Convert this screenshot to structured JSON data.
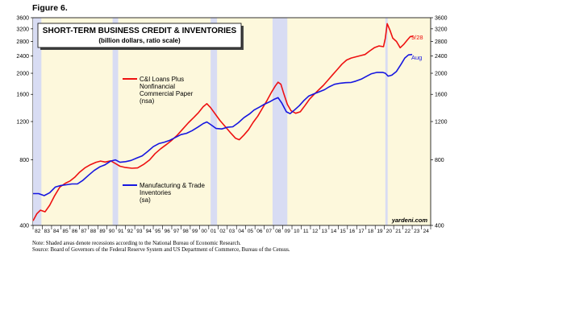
{
  "figure_label": "Figure 6.",
  "notes": [
    "Note: Shaded areas denote recessions according to the National Bureau of Economic Research.",
    "Source: Board of Governors of the Federal Reserve System and US Department of Commerce, Bureau of the Census."
  ],
  "chart_data": {
    "type": "line",
    "title": "SHORT-TERM BUSINESS CREDIT & INVENTORIES",
    "subtitle": "(billion dollars, ratio scale)",
    "y_scale": "log",
    "ylim": [
      400,
      3600
    ],
    "y_ticks": [
      400,
      800,
      1200,
      1600,
      2000,
      2400,
      2800,
      3200,
      3600
    ],
    "y_tick_labels_left": [
      "400",
      "800",
      "1200",
      "1600",
      "2000",
      "2400",
      "2800",
      "3200",
      "3600"
    ],
    "y_tick_labels_right": [
      "400",
      "800",
      "1200",
      "1600",
      "2000",
      "2400",
      "2800",
      "3200",
      "3600"
    ],
    "xlim": [
      1982,
      2025
    ],
    "x_tick_labels": [
      "82",
      "83",
      "84",
      "85",
      "86",
      "87",
      "88",
      "89",
      "90",
      "91",
      "92",
      "93",
      "94",
      "95",
      "96",
      "97",
      "98",
      "99",
      "00",
      "01",
      "02",
      "03",
      "04",
      "05",
      "06",
      "07",
      "08",
      "09",
      "10",
      "11",
      "12",
      "13",
      "14",
      "15",
      "16",
      "17",
      "18",
      "19",
      "20",
      "21",
      "22",
      "23",
      "24"
    ],
    "plot_background": "#fdf8dc",
    "recession_color": "#d8dcf3",
    "recessions": [
      [
        1981.5,
        1982.9
      ],
      [
        1990.6,
        1991.2
      ],
      [
        2001.2,
        2001.9
      ],
      [
        2007.9,
        2009.5
      ],
      [
        2020.1,
        2020.35
      ]
    ],
    "credit": "yardeni.com",
    "series": [
      {
        "name": "C&I Loans Plus Nonfinancial Commercial Paper (nsa)",
        "legend_lines": [
          "C&I Loans Plus",
          "Nonfinancial",
          "Commercial Paper",
          "(nsa)"
        ],
        "color": "#ee1111",
        "end_label": "9/28",
        "points": [
          [
            1982.0,
            420
          ],
          [
            1982.4,
            452
          ],
          [
            1982.8,
            470
          ],
          [
            1983.3,
            462
          ],
          [
            1983.8,
            495
          ],
          [
            1984.3,
            545
          ],
          [
            1984.9,
            600
          ],
          [
            1985.5,
            625
          ],
          [
            1986.0,
            640
          ],
          [
            1986.5,
            665
          ],
          [
            1987.0,
            700
          ],
          [
            1987.6,
            735
          ],
          [
            1988.2,
            760
          ],
          [
            1988.8,
            780
          ],
          [
            1989.3,
            790
          ],
          [
            1989.8,
            782
          ],
          [
            1990.4,
            792
          ],
          [
            1990.9,
            770
          ],
          [
            1991.4,
            748
          ],
          [
            1992.0,
            738
          ],
          [
            1992.7,
            732
          ],
          [
            1993.3,
            735
          ],
          [
            1994.0,
            765
          ],
          [
            1994.6,
            800
          ],
          [
            1995.2,
            855
          ],
          [
            1995.8,
            900
          ],
          [
            1996.4,
            940
          ],
          [
            1997.0,
            985
          ],
          [
            1997.6,
            1040
          ],
          [
            1998.2,
            1110
          ],
          [
            1998.8,
            1185
          ],
          [
            1999.4,
            1255
          ],
          [
            1999.9,
            1320
          ],
          [
            2000.4,
            1405
          ],
          [
            2000.8,
            1450
          ],
          [
            2001.2,
            1390
          ],
          [
            2001.7,
            1300
          ],
          [
            2002.2,
            1215
          ],
          [
            2002.8,
            1135
          ],
          [
            2003.4,
            1060
          ],
          [
            2003.9,
            1005
          ],
          [
            2004.3,
            990
          ],
          [
            2004.8,
            1040
          ],
          [
            2005.3,
            1100
          ],
          [
            2005.8,
            1190
          ],
          [
            2006.3,
            1270
          ],
          [
            2006.8,
            1380
          ],
          [
            2007.3,
            1500
          ],
          [
            2007.8,
            1640
          ],
          [
            2008.2,
            1750
          ],
          [
            2008.5,
            1820
          ],
          [
            2008.8,
            1780
          ],
          [
            2009.1,
            1620
          ],
          [
            2009.5,
            1440
          ],
          [
            2009.9,
            1345
          ],
          [
            2010.4,
            1310
          ],
          [
            2010.9,
            1330
          ],
          [
            2011.4,
            1420
          ],
          [
            2011.9,
            1520
          ],
          [
            2012.4,
            1600
          ],
          [
            2012.9,
            1680
          ],
          [
            2013.4,
            1760
          ],
          [
            2013.9,
            1860
          ],
          [
            2014.4,
            1970
          ],
          [
            2014.9,
            2080
          ],
          [
            2015.4,
            2200
          ],
          [
            2015.9,
            2300
          ],
          [
            2016.4,
            2350
          ],
          [
            2016.9,
            2380
          ],
          [
            2017.4,
            2410
          ],
          [
            2017.9,
            2440
          ],
          [
            2018.4,
            2530
          ],
          [
            2018.9,
            2620
          ],
          [
            2019.4,
            2670
          ],
          [
            2019.9,
            2650
          ],
          [
            2020.1,
            2900
          ],
          [
            2020.3,
            3380
          ],
          [
            2020.6,
            3150
          ],
          [
            2020.9,
            2900
          ],
          [
            2021.3,
            2800
          ],
          [
            2021.7,
            2620
          ],
          [
            2022.1,
            2720
          ],
          [
            2022.5,
            2850
          ],
          [
            2022.8,
            2950
          ],
          [
            2023.1,
            2960
          ]
        ]
      },
      {
        "name": "Manufacturing & Trade Inventories (sa)",
        "legend_lines": [
          "Manufacturing & Trade",
          "Inventories",
          "(sa)"
        ],
        "color": "#1616e0",
        "end_label": "Aug",
        "points": [
          [
            1982.0,
            560
          ],
          [
            1982.6,
            560
          ],
          [
            1983.2,
            548
          ],
          [
            1983.8,
            565
          ],
          [
            1984.4,
            600
          ],
          [
            1985.0,
            610
          ],
          [
            1985.6,
            615
          ],
          [
            1986.2,
            620
          ],
          [
            1986.8,
            620
          ],
          [
            1987.4,
            645
          ],
          [
            1988.0,
            680
          ],
          [
            1988.6,
            715
          ],
          [
            1989.2,
            742
          ],
          [
            1989.8,
            760
          ],
          [
            1990.4,
            790
          ],
          [
            1990.9,
            800
          ],
          [
            1991.4,
            780
          ],
          [
            1992.0,
            785
          ],
          [
            1992.6,
            795
          ],
          [
            1993.2,
            815
          ],
          [
            1993.8,
            835
          ],
          [
            1994.4,
            875
          ],
          [
            1995.0,
            920
          ],
          [
            1995.6,
            950
          ],
          [
            1996.2,
            965
          ],
          [
            1996.8,
            985
          ],
          [
            1997.4,
            1015
          ],
          [
            1998.0,
            1045
          ],
          [
            1998.6,
            1060
          ],
          [
            1999.2,
            1090
          ],
          [
            1999.8,
            1130
          ],
          [
            2000.4,
            1175
          ],
          [
            2000.8,
            1195
          ],
          [
            2001.3,
            1155
          ],
          [
            2001.8,
            1115
          ],
          [
            2002.4,
            1110
          ],
          [
            2003.0,
            1130
          ],
          [
            2003.6,
            1135
          ],
          [
            2004.2,
            1185
          ],
          [
            2004.8,
            1250
          ],
          [
            2005.4,
            1300
          ],
          [
            2005.9,
            1355
          ],
          [
            2006.5,
            1400
          ],
          [
            2007.0,
            1440
          ],
          [
            2007.6,
            1480
          ],
          [
            2008.1,
            1520
          ],
          [
            2008.5,
            1545
          ],
          [
            2008.9,
            1460
          ],
          [
            2009.4,
            1330
          ],
          [
            2009.8,
            1305
          ],
          [
            2010.3,
            1360
          ],
          [
            2010.8,
            1420
          ],
          [
            2011.3,
            1500
          ],
          [
            2011.8,
            1570
          ],
          [
            2012.4,
            1610
          ],
          [
            2012.9,
            1640
          ],
          [
            2013.5,
            1680
          ],
          [
            2014.0,
            1730
          ],
          [
            2014.6,
            1780
          ],
          [
            2015.2,
            1800
          ],
          [
            2015.8,
            1810
          ],
          [
            2016.4,
            1815
          ],
          [
            2016.9,
            1840
          ],
          [
            2017.5,
            1880
          ],
          [
            2018.0,
            1930
          ],
          [
            2018.6,
            1990
          ],
          [
            2019.2,
            2020
          ],
          [
            2019.8,
            2020
          ],
          [
            2020.1,
            2000
          ],
          [
            2020.4,
            1940
          ],
          [
            2020.8,
            1960
          ],
          [
            2021.3,
            2040
          ],
          [
            2021.8,
            2200
          ],
          [
            2022.2,
            2350
          ],
          [
            2022.6,
            2430
          ],
          [
            2023.0,
            2440
          ]
        ]
      }
    ]
  }
}
